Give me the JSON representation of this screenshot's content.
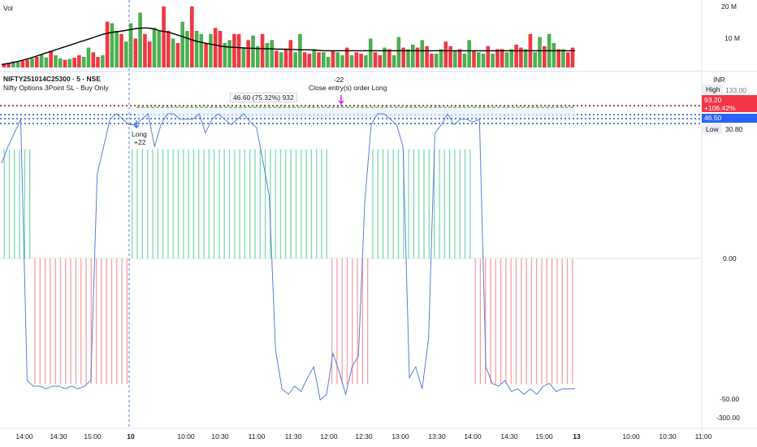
{
  "volume_pane": {
    "title": "Vol",
    "axis_ticks": [
      "20 M",
      "10 M"
    ]
  },
  "main_pane": {
    "symbol_line": "NIFTY251014C25300 · 5 · NSE",
    "indicator_line": "Nifty Options 3Point SL - Buy Only",
    "currency": "INR",
    "axis_ticks": [
      "0.00",
      "-50.00",
      "-300.00"
    ],
    "high_label": "High",
    "high_value": "133.00",
    "low_label": "Low",
    "low_value": "30.80",
    "last_price": "93.20",
    "last_change": "+106.42%",
    "entry_price": "46.50",
    "trade_box": "46.60 (75.32%) 932",
    "long_label": "Long",
    "long_qty": "+22",
    "close_qty": "-22",
    "close_label": "Close entry(s) order Long"
  },
  "time_axis": {
    "labels": [
      "14:00",
      "14:30",
      "15:00",
      "10",
      "10:00",
      "10:30",
      "11:00",
      "11:30",
      "12:00",
      "12:30",
      "13:00",
      "13:30",
      "14:00",
      "14:30",
      "15:00",
      "13",
      "10:00",
      "10:30",
      "11:00"
    ]
  },
  "colors": {
    "up": "#4caf50",
    "down": "#f23645",
    "hist_up": "#7fdcb0",
    "hist_down": "#f7a0a6",
    "line": "#5b7fd6",
    "ma": "#000000",
    "blue_badge": "#2962ff",
    "red_badge": "#f23645"
  },
  "chart_data": {
    "type": "bar",
    "volume_millions": [
      1.2,
      1.5,
      2,
      1.8,
      2.2,
      2.5,
      3,
      3.5,
      4.2,
      3.3,
      5.5,
      4,
      3,
      2.5,
      2.8,
      3.2,
      4,
      3.5,
      6.5,
      5,
      3.5,
      4,
      15,
      14.5,
      12,
      11,
      8.5,
      14.5,
      9.5,
      18,
      11,
      8.5,
      13,
      12,
      20,
      12,
      9.5,
      8,
      15,
      12,
      20,
      12,
      11,
      8,
      11,
      13,
      12,
      8,
      9,
      11,
      11,
      6.5,
      9,
      10.5,
      7,
      11,
      8,
      9,
      5.5,
      5,
      6,
      9,
      5,
      11,
      5,
      4.5,
      6,
      5,
      5,
      3.5,
      5.5,
      5,
      4,
      6.5,
      4,
      5,
      4.5,
      4,
      9.5,
      5,
      4,
      6.5,
      6,
      4,
      10,
      6.5,
      6,
      7.5,
      6.5,
      9,
      7,
      4.5,
      4.5,
      6,
      8.5,
      7,
      5.5,
      6,
      4.5,
      9,
      5.5,
      5,
      4.5,
      7,
      4.5,
      6,
      6,
      5,
      6,
      7.5,
      6.5,
      6,
      11,
      5,
      10,
      7,
      11,
      8,
      6,
      6,
      5,
      6.5
    ],
    "moving_average_millions": [
      1,
      1.2,
      1.5,
      1.8,
      2.2,
      2.6,
      3,
      3.5,
      4,
      4.5,
      5,
      5.5,
      6,
      6.5,
      7,
      7.5,
      8,
      8.5,
      9,
      9.5,
      10,
      10.5,
      11,
      11.3,
      11.6,
      11.8,
      12,
      12.3,
      12.5,
      12.8,
      12.9,
      13,
      12.8,
      12.5,
      12,
      11.8,
      11.5,
      11,
      10.5,
      10,
      9.5,
      9,
      8.5,
      8.2,
      7.9,
      7.6,
      7.3,
      7,
      6.8,
      6.7,
      6.6,
      6.5,
      6.4,
      6.3,
      6.3,
      6.2,
      6.2,
      6.1,
      6.1,
      6,
      6,
      6,
      5.9,
      5.9,
      5.8,
      5.8,
      5.8,
      5.7,
      5.6,
      5.5,
      5.5,
      5.5,
      5.5,
      5.5,
      5.5,
      5.5,
      5.5,
      5.5,
      5.5,
      5.5,
      5.5,
      5.5,
      5.5,
      5.5,
      5.5,
      5.5,
      5.5,
      5.5,
      5.5,
      5.5,
      5.5,
      5.5,
      5.5,
      5.5,
      5.5,
      5.5,
      5.5,
      5.5,
      5.5,
      5.5,
      5.5,
      5.5,
      5.5,
      5.5,
      5.5,
      5.5,
      5.5,
      5.5,
      5.5,
      5.5,
      5.5,
      5.5,
      5.5,
      5.5,
      5.5,
      5.5,
      5.5,
      5.5,
      5.5,
      5.5,
      5.5,
      5.5,
      5.5,
      5.5
    ],
    "histogram": [
      42,
      42,
      42,
      42,
      42,
      42,
      -42,
      -42,
      -42,
      -42,
      -42,
      -42,
      -42,
      -42,
      -42,
      -42,
      -42,
      -42,
      -42,
      -42,
      -42,
      -42,
      -42,
      -42,
      -42,
      42,
      42,
      42,
      42,
      42,
      42,
      42,
      42,
      42,
      42,
      42,
      42,
      42,
      42,
      42,
      42,
      42,
      42,
      42,
      42,
      42,
      42,
      42,
      42,
      42,
      42,
      42,
      42,
      42,
      42,
      42,
      42,
      42,
      42,
      42,
      42,
      42,
      42,
      42,
      -42,
      -42,
      -42,
      -42,
      -42,
      -42,
      -42,
      -42,
      42,
      42,
      42,
      42,
      42,
      42,
      42,
      42,
      42,
      42,
      42,
      42,
      42,
      42,
      42,
      42,
      42,
      42,
      42,
      42,
      -42,
      -42,
      -42,
      -42,
      -42,
      -42,
      -42,
      -42,
      -42,
      -42,
      -42,
      -42,
      -42,
      -42,
      -42,
      -42,
      -42,
      -42,
      -42,
      -42
    ],
    "oscillator_line": [
      34,
      40,
      45,
      50,
      -45,
      -47,
      -47,
      -48,
      -47,
      -47,
      -48,
      -47,
      -48,
      -47,
      -45,
      30,
      40,
      50,
      52,
      50,
      48,
      48,
      50,
      52,
      40,
      48,
      52,
      52,
      50,
      50,
      50,
      52,
      45,
      50,
      52,
      50,
      48,
      50,
      52,
      49,
      47,
      35,
      22,
      -34,
      -48,
      -50,
      -47,
      -49,
      -44,
      -40,
      -52,
      -50,
      -35,
      -42,
      -50,
      -40,
      -36,
      20,
      48,
      52,
      52,
      50,
      48,
      40,
      -44,
      -40,
      -48,
      -30,
      45,
      48,
      52,
      48,
      50,
      50,
      49,
      50,
      -40,
      -46,
      -47,
      -45,
      -49,
      -48,
      -50,
      -48,
      -50,
      -47,
      -46,
      -49,
      -48,
      -48,
      -48
    ],
    "series": [
      {
        "name": "Vol",
        "values": []
      }
    ]
  }
}
